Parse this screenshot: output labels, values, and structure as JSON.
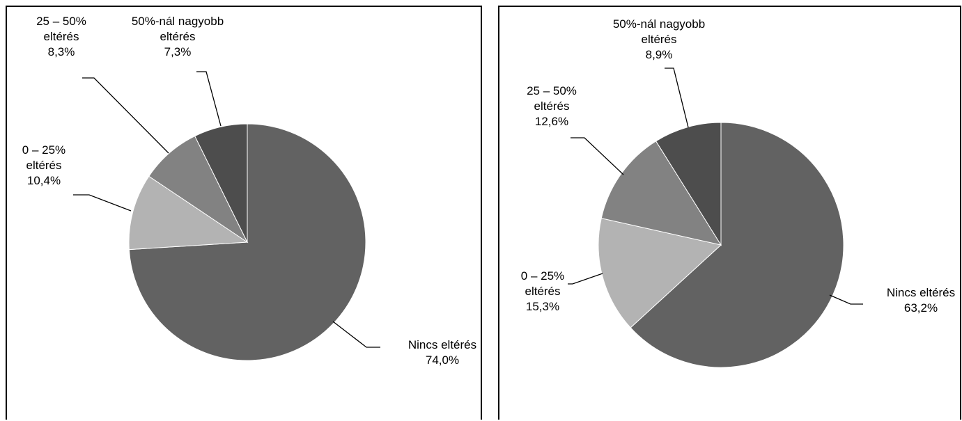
{
  "chart_data": [
    {
      "type": "pie",
      "start_angle_deg": 0,
      "direction": "clockwise",
      "legend": "none",
      "slices": [
        {
          "label": "Nincs eltérés",
          "value": 74.0,
          "display": "74,0%",
          "color": "#626262"
        },
        {
          "label": "0 – 25% eltérés",
          "value": 10.4,
          "display": "10,4%",
          "color": "#b3b3b3"
        },
        {
          "label": "25 – 50% eltérés",
          "value": 8.3,
          "display": "8,3%",
          "color": "#828282"
        },
        {
          "label": "50%-nál nagyobb eltérés",
          "value": 7.3,
          "display": "7,3%",
          "color": "#4d4d4d"
        }
      ]
    },
    {
      "type": "pie",
      "start_angle_deg": 0,
      "direction": "clockwise",
      "legend": "none",
      "slices": [
        {
          "label": "Nincs eltérés",
          "value": 63.2,
          "display": "63,2%",
          "color": "#626262"
        },
        {
          "label": "0 – 25% eltérés",
          "value": 15.3,
          "display": "15,3%",
          "color": "#b3b3b3"
        },
        {
          "label": "25 – 50% eltérés",
          "value": 12.6,
          "display": "12,6%",
          "color": "#828282"
        },
        {
          "label": "50%-nál nagyobb eltérés",
          "value": 8.9,
          "display": "8,9%",
          "color": "#4d4d4d"
        }
      ]
    }
  ],
  "labels": [
    [
      {
        "lines": [
          "Nincs eltérés",
          "74,0%"
        ]
      },
      {
        "lines": [
          "0 – 25%",
          "eltérés",
          "10,4%"
        ]
      },
      {
        "lines": [
          "25 – 50%",
          "eltérés",
          "8,3%"
        ]
      },
      {
        "lines": [
          "50%-nál nagyobb",
          "eltérés",
          "7,3%"
        ]
      }
    ],
    [
      {
        "lines": [
          "Nincs eltérés",
          "63,2%"
        ]
      },
      {
        "lines": [
          "0 – 25%",
          "eltérés",
          "15,3%"
        ]
      },
      {
        "lines": [
          "25 – 50%",
          "eltérés",
          "12,6%"
        ]
      },
      {
        "lines": [
          "50%-nál nagyobb",
          "eltérés",
          "8,9%"
        ]
      }
    ]
  ]
}
